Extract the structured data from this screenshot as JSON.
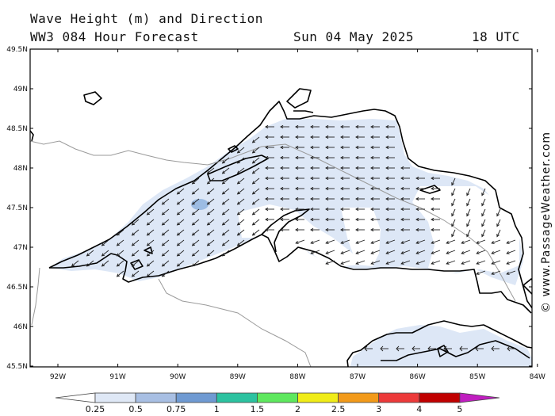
{
  "header": {
    "title": "Wave Height (m) and Direction",
    "model": "WW3 084 Hour Forecast",
    "date": "Sun 04 May 2025",
    "time": "18 UTC"
  },
  "axes": {
    "lat_labels": [
      "49.5N",
      "49N",
      "48.5N",
      "48N",
      "47.5N",
      "47N",
      "46.5N",
      "46N",
      "45.5N"
    ],
    "lon_labels": [
      "92W",
      "91W",
      "90W",
      "89W",
      "88W",
      "87W",
      "86W",
      "85W",
      "84W"
    ]
  },
  "legend": {
    "labels": [
      "0.25",
      "0.5",
      "0.75",
      "1",
      "1.5",
      "2",
      "2.5",
      "3",
      "4",
      "5"
    ],
    "colors": [
      "#ffffff",
      "#dfe8f6",
      "#a8bfe3",
      "#6f9ad2",
      "#2cc2a0",
      "#5ee85e",
      "#f0ec18",
      "#f29a1a",
      "#ec3a3a",
      "#c00000",
      "#c01ec0"
    ]
  },
  "copyright": "© www.PassageWeather.com",
  "colors": {
    "wave_low": "#dde7f6",
    "wave_mid": "#9cbce3",
    "water": "#ffffff",
    "border": "#9a9a9a"
  }
}
